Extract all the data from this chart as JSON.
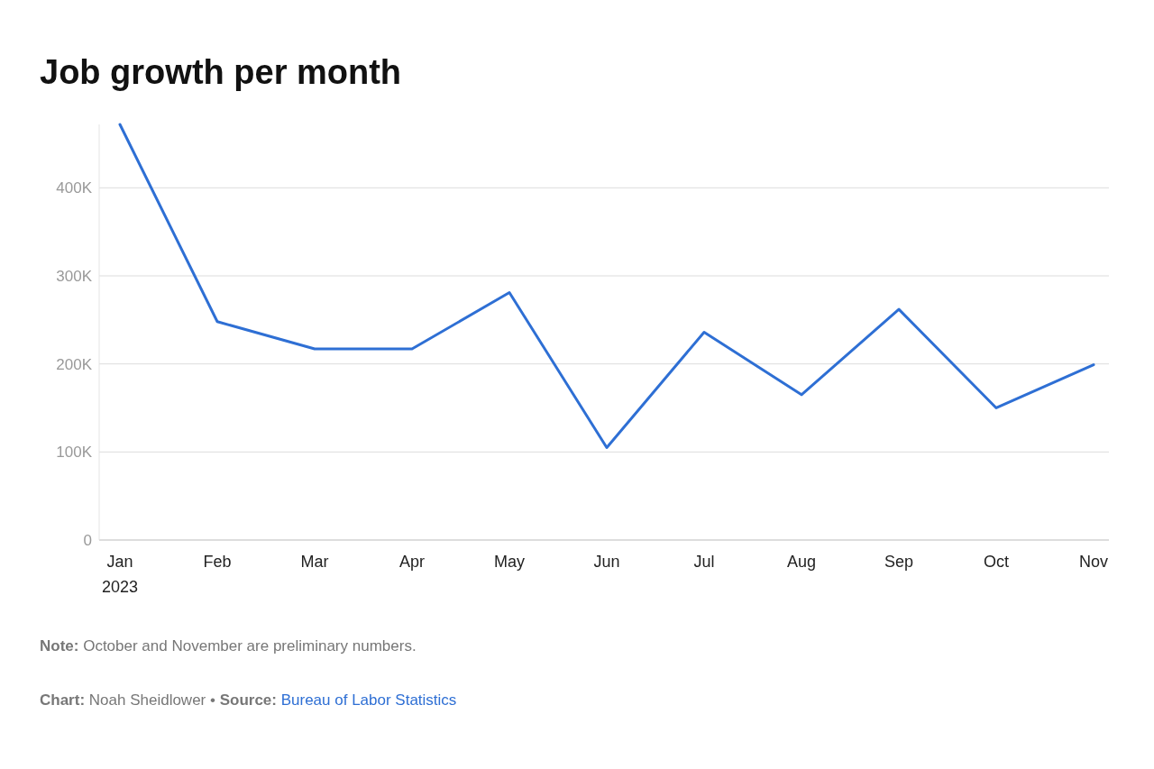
{
  "chart_data": {
    "type": "line",
    "title": "Job growth per month",
    "categories": [
      "Jan\n2023",
      "Feb",
      "Mar",
      "Apr",
      "May",
      "Jun",
      "Jul",
      "Aug",
      "Sep",
      "Oct",
      "Nov"
    ],
    "series": [
      {
        "color": "#2e6fd4",
        "values": [
          472,
          248,
          217,
          217,
          281,
          105,
          236,
          165,
          262,
          150,
          199
        ]
      }
    ],
    "yticks": [
      {
        "value": 0,
        "label": "0"
      },
      {
        "value": 100,
        "label": "100K"
      },
      {
        "value": 200,
        "label": "200K"
      },
      {
        "value": 300,
        "label": "300K"
      },
      {
        "value": 400,
        "label": "400K"
      }
    ],
    "ylim": [
      0,
      472
    ],
    "grid": "y",
    "marker": "none",
    "line_style": "solid",
    "annotations": [
      "Note: October and November are preliminary numbers.",
      "Chart: Noah Sheidlower • Source: Bureau of Labor Statistics"
    ]
  }
}
